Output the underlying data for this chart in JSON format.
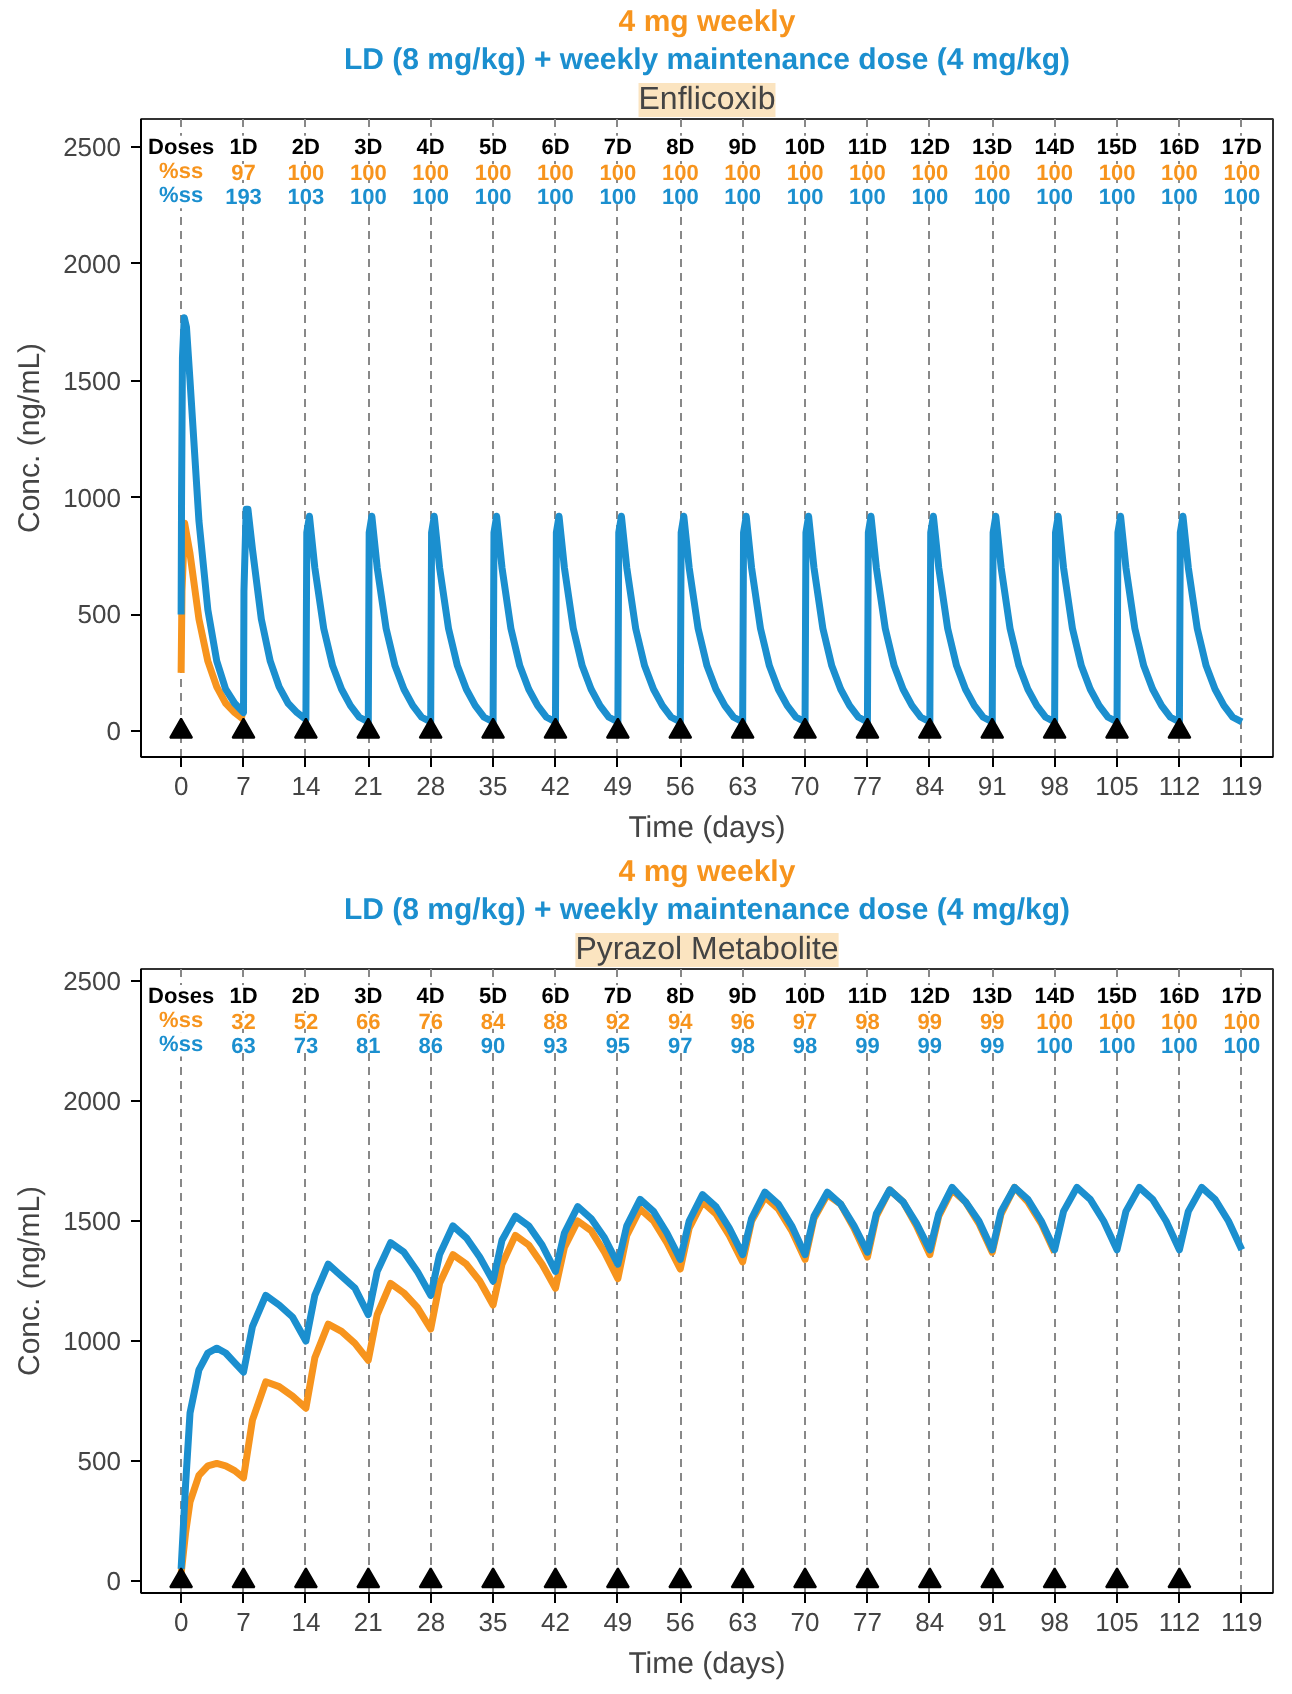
{
  "chart_data": [
    {
      "type": "line",
      "title": "Enflicoxib",
      "xlabel": "Time (days)",
      "ylabel": "Conc. (ng/mL)",
      "xlim": [
        -4.5,
        122.5
      ],
      "ylim": [
        -110,
        2620
      ],
      "xticks": [
        0,
        7,
        14,
        21,
        28,
        35,
        42,
        49,
        56,
        63,
        70,
        77,
        84,
        91,
        98,
        105,
        112,
        119
      ],
      "yticks": [
        0,
        500,
        1000,
        1500,
        2000,
        2500
      ],
      "grid": "x",
      "legend": "top",
      "series": [
        {
          "name": "4 mg weekly",
          "color": "#f7941d",
          "x": [
            0,
            0.1,
            0.4,
            1,
            2,
            3,
            4,
            5,
            6,
            7
          ],
          "values": [
            250,
            600,
            890,
            760,
            480,
            300,
            190,
            120,
            80,
            50
          ]
        },
        {
          "name": "LD (8 mg/kg) + weekly maintenance dose (4 mg/kg)",
          "color": "#1b8fcf",
          "x": [
            0,
            0.05,
            0.15,
            0.35,
            0.6,
            1,
            2,
            3,
            4,
            5,
            6,
            7,
            7.05,
            7.3,
            7.5,
            8,
            9,
            10,
            11,
            12,
            13,
            14,
            14.1,
            14.4,
            15,
            16,
            17,
            18,
            19,
            20,
            21,
            21.1,
            21.4,
            22,
            23,
            24,
            25,
            26,
            27,
            28,
            28.1,
            28.4,
            29,
            30,
            31,
            32,
            33,
            34,
            35,
            35.1,
            35.4,
            36,
            37,
            38,
            39,
            40,
            41,
            42,
            42.1,
            42.4,
            43,
            44,
            45,
            46,
            47,
            48,
            49,
            49.1,
            49.4,
            50,
            51,
            52,
            53,
            54,
            55,
            56,
            56.1,
            56.4,
            57,
            58,
            59,
            60,
            61,
            62,
            63,
            63.1,
            63.4,
            64,
            65,
            66,
            67,
            68,
            69,
            70,
            70.1,
            70.4,
            71,
            72,
            73,
            74,
            75,
            76,
            77,
            77.1,
            77.4,
            78,
            79,
            80,
            81,
            82,
            83,
            84,
            84.1,
            84.4,
            85,
            86,
            87,
            88,
            89,
            90,
            91,
            91.1,
            91.4,
            92,
            93,
            94,
            95,
            96,
            97,
            98,
            98.1,
            98.4,
            99,
            100,
            101,
            102,
            103,
            104,
            105,
            105.1,
            105.4,
            106,
            107,
            108,
            109,
            110,
            111,
            112,
            112.1,
            112.4,
            113,
            114,
            115,
            116,
            117,
            118,
            119
          ],
          "values": [
            500,
            1000,
            1600,
            1770,
            1730,
            1500,
            900,
            520,
            300,
            180,
            120,
            80,
            600,
            950,
            950,
            780,
            480,
            300,
            190,
            120,
            80,
            50,
            850,
            920,
            700,
            440,
            280,
            180,
            110,
            60,
            40,
            850,
            920,
            700,
            440,
            280,
            180,
            110,
            60,
            40,
            850,
            920,
            700,
            440,
            280,
            180,
            110,
            60,
            40,
            850,
            920,
            700,
            440,
            280,
            180,
            110,
            60,
            40,
            850,
            920,
            700,
            440,
            280,
            180,
            110,
            60,
            40,
            850,
            920,
            700,
            440,
            280,
            180,
            110,
            60,
            40,
            850,
            920,
            700,
            440,
            280,
            180,
            110,
            60,
            40,
            850,
            920,
            700,
            440,
            280,
            180,
            110,
            60,
            40,
            850,
            920,
            700,
            440,
            280,
            180,
            110,
            60,
            40,
            850,
            920,
            700,
            440,
            280,
            180,
            110,
            60,
            40,
            850,
            920,
            700,
            440,
            280,
            180,
            110,
            60,
            40,
            850,
            920,
            700,
            440,
            280,
            180,
            110,
            60,
            40,
            850,
            920,
            700,
            440,
            280,
            180,
            110,
            60,
            40,
            850,
            920,
            700,
            440,
            280,
            180,
            110,
            60,
            40,
            850,
            920,
            700,
            440,
            280,
            180,
            110,
            60,
            40
          ]
        },
        {
          "type": "scatter",
          "marker": "triangle",
          "color": "#000000",
          "x": [
            0,
            7,
            14,
            21,
            28,
            35,
            42,
            49,
            56,
            63,
            70,
            77,
            84,
            91,
            98,
            105,
            112
          ],
          "values": [
            0,
            0,
            0,
            0,
            0,
            0,
            0,
            0,
            0,
            0,
            0,
            0,
            0,
            0,
            0,
            0,
            0
          ]
        }
      ],
      "annotations": [
        "Doses",
        "1D",
        "2D",
        "3D",
        "4D",
        "5D",
        "6D",
        "7D",
        "8D",
        "9D",
        "10D",
        "11D",
        "12D",
        "13D",
        "14D",
        "15D",
        "16D",
        "17D",
        "%ss",
        "97",
        "100",
        "100",
        "100",
        "100",
        "100",
        "100",
        "100",
        "100",
        "100",
        "100",
        "100",
        "100",
        "100",
        "100",
        "100",
        "100",
        "%ss",
        "193",
        "103",
        "100",
        "100",
        "100",
        "100",
        "100",
        "100",
        "100",
        "100",
        "100",
        "100",
        "100",
        "100",
        "100",
        "100",
        "100"
      ]
    },
    {
      "type": "line",
      "title": "Pyrazol Metabolite",
      "xlabel": "Time (days)",
      "ylabel": "Conc. (ng/mL)",
      "xlim": [
        -4.5,
        122.5
      ],
      "ylim": [
        -50,
        2550
      ],
      "xticks": [
        0,
        7,
        14,
        21,
        28,
        35,
        42,
        49,
        56,
        63,
        70,
        77,
        84,
        91,
        98,
        105,
        112,
        119
      ],
      "yticks": [
        0,
        500,
        1000,
        1500,
        2000,
        2500
      ],
      "grid": "x",
      "legend": "top",
      "series": [
        {
          "name": "4 mg weekly",
          "color": "#f7941d",
          "x": [
            0,
            0.5,
            1,
            2,
            3,
            4,
            5,
            6,
            7,
            8,
            9.5,
            11,
            12.5,
            14,
            15,
            16.5,
            18,
            19.5,
            21,
            22,
            23.5,
            25,
            26.5,
            28,
            29,
            30.5,
            32,
            33.5,
            35,
            36,
            37.5,
            39,
            40.5,
            42,
            43,
            44.5,
            46,
            47.5,
            49,
            50,
            51.5,
            53,
            54.5,
            56,
            57,
            58.5,
            60,
            61.5,
            63,
            64,
            65.5,
            67,
            68.5,
            70,
            71,
            72.5,
            74,
            75.5,
            77,
            78,
            79.5,
            81,
            82.5,
            84,
            85,
            86.5,
            88,
            89.5,
            91,
            92,
            93.5,
            95,
            96.5,
            98
          ],
          "values": [
            30,
            200,
            330,
            440,
            480,
            490,
            480,
            460,
            430,
            670,
            830,
            810,
            770,
            720,
            930,
            1070,
            1040,
            990,
            920,
            1110,
            1240,
            1200,
            1140,
            1050,
            1240,
            1360,
            1320,
            1250,
            1150,
            1320,
            1440,
            1400,
            1320,
            1220,
            1390,
            1500,
            1460,
            1370,
            1260,
            1440,
            1550,
            1500,
            1410,
            1300,
            1470,
            1580,
            1530,
            1440,
            1330,
            1500,
            1600,
            1550,
            1460,
            1340,
            1510,
            1610,
            1570,
            1470,
            1350,
            1520,
            1630,
            1580,
            1480,
            1360,
            1520,
            1630,
            1580,
            1490,
            1370,
            1530,
            1640,
            1580,
            1490,
            1370
          ]
        },
        {
          "name": "LD (8 mg/kg) + weekly maintenance dose (4 mg/kg)",
          "color": "#1b8fcf",
          "x": [
            0,
            0.5,
            1,
            2,
            3,
            4,
            5,
            6,
            7,
            8,
            9.5,
            11,
            12.5,
            14,
            15,
            16.5,
            18,
            19.5,
            21,
            22,
            23.5,
            25,
            26.5,
            28,
            29,
            30.5,
            32,
            33.5,
            35,
            36,
            37.5,
            39,
            40.5,
            42,
            43,
            44.5,
            46,
            47.5,
            49,
            50,
            51.5,
            53,
            54.5,
            56,
            57,
            58.5,
            60,
            61.5,
            63,
            64,
            65.5,
            67,
            68.5,
            70,
            71,
            72.5,
            74,
            75.5,
            77,
            78,
            79.5,
            81,
            82.5,
            84,
            85,
            86.5,
            88,
            89.5,
            91,
            92,
            93.5,
            95,
            96.5,
            98,
            99,
            100.5,
            102,
            103.5,
            105,
            106,
            107.5,
            109,
            110.5,
            112,
            113,
            114.5,
            116,
            117.5,
            119
          ],
          "values": [
            50,
            400,
            700,
            880,
            950,
            970,
            950,
            910,
            870,
            1060,
            1190,
            1150,
            1100,
            1000,
            1190,
            1320,
            1270,
            1220,
            1110,
            1290,
            1410,
            1370,
            1290,
            1190,
            1360,
            1480,
            1430,
            1350,
            1250,
            1420,
            1520,
            1480,
            1400,
            1290,
            1450,
            1560,
            1510,
            1430,
            1320,
            1480,
            1590,
            1540,
            1450,
            1340,
            1500,
            1610,
            1560,
            1470,
            1360,
            1510,
            1620,
            1570,
            1480,
            1360,
            1520,
            1620,
            1570,
            1480,
            1370,
            1530,
            1630,
            1580,
            1490,
            1380,
            1530,
            1640,
            1580,
            1500,
            1380,
            1540,
            1640,
            1590,
            1500,
            1380,
            1540,
            1640,
            1590,
            1500,
            1380,
            1540,
            1640,
            1590,
            1500,
            1380,
            1540,
            1640,
            1590,
            1500,
            1380
          ]
        },
        {
          "type": "scatter",
          "marker": "triangle",
          "color": "#000000",
          "x": [
            0,
            7,
            14,
            21,
            28,
            35,
            42,
            49,
            56,
            63,
            70,
            77,
            84,
            91,
            98,
            105,
            112
          ],
          "values": [
            0,
            0,
            0,
            0,
            0,
            0,
            0,
            0,
            0,
            0,
            0,
            0,
            0,
            0,
            0,
            0,
            0
          ]
        }
      ],
      "annotations": [
        "Doses",
        "1D",
        "2D",
        "3D",
        "4D",
        "5D",
        "6D",
        "7D",
        "8D",
        "9D",
        "10D",
        "11D",
        "12D",
        "13D",
        "14D",
        "15D",
        "16D",
        "17D",
        "%ss",
        "32",
        "52",
        "66",
        "76",
        "84",
        "88",
        "92",
        "94",
        "96",
        "97",
        "98",
        "99",
        "99",
        "100",
        "100",
        "100",
        "100",
        "%ss",
        "63",
        "73",
        "81",
        "86",
        "90",
        "93",
        "95",
        "97",
        "98",
        "98",
        "99",
        "99",
        "99",
        "100",
        "100",
        "100",
        "100"
      ]
    }
  ]
}
